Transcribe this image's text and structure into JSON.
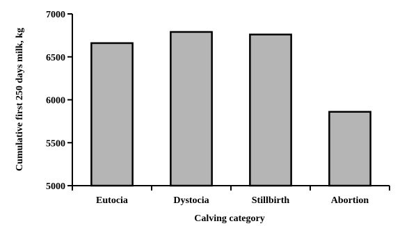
{
  "chart_data": {
    "type": "bar",
    "title": "",
    "xlabel": "Calving category",
    "ylabel": "Cumulative first 250 days milk, kg",
    "categories": [
      "Eutocia",
      "Dystocia",
      "Stillbirth",
      "Abortion"
    ],
    "values": [
      6660,
      6790,
      6760,
      5860
    ],
    "ylim": [
      5000,
      7000
    ],
    "yticks": [
      5000,
      5500,
      6000,
      6500,
      7000
    ],
    "grid": false,
    "bar_color": "#b5b5b5",
    "edge_color": "#000000"
  }
}
